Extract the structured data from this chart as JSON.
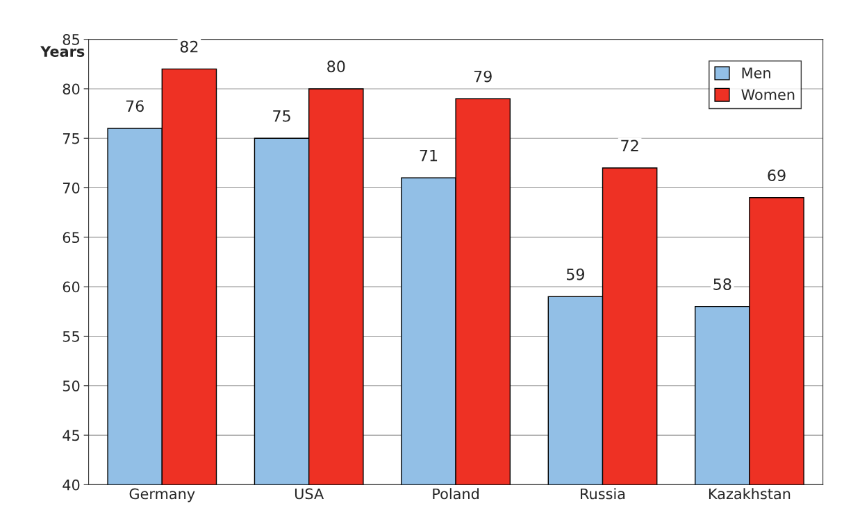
{
  "chart_data": {
    "type": "bar",
    "ylabel": "Years",
    "categories": [
      "Germany",
      "USA",
      "Poland",
      "Russia",
      "Kazakhstan"
    ],
    "series": [
      {
        "name": "Men",
        "color": "#92bfe6",
        "values": [
          76,
          75,
          71,
          59,
          58
        ]
      },
      {
        "name": "Women",
        "color": "#ee3124",
        "values": [
          82,
          80,
          79,
          72,
          69
        ]
      }
    ],
    "ylim": [
      40,
      85
    ],
    "yticks": [
      40,
      45,
      50,
      55,
      60,
      65,
      70,
      75,
      80,
      85
    ],
    "grid": "y",
    "legend": "top right",
    "data_labels": true
  }
}
